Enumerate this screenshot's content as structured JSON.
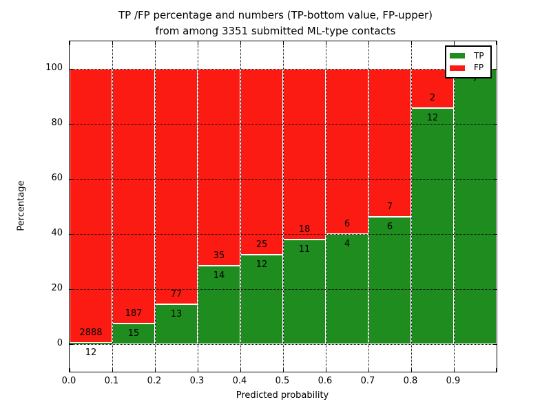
{
  "figure": {
    "title_line1": "TP /FP percentage and numbers (TP-bottom value, FP-upper)",
    "title_line2": "from among 3351 submitted ML-type contacts"
  },
  "chart_data": {
    "type": "bar",
    "stacked": true,
    "normalized_to_percent": true,
    "title": "TP /FP percentage and numbers (TP-bottom value, FP-upper) from among 3351 submitted ML-type contacts",
    "total_contacts": 3351,
    "xlabel": "Predicted probability",
    "ylabel": "Percentage",
    "xlim": [
      0.0,
      1.0
    ],
    "ylim": [
      -10,
      110
    ],
    "bin_width": 0.1,
    "categories": [
      "0.0-0.1",
      "0.1-0.2",
      "0.2-0.3",
      "0.3-0.4",
      "0.4-0.5",
      "0.5-0.6",
      "0.6-0.7",
      "0.7-0.8",
      "0.8-0.9",
      "0.9-1.0"
    ],
    "xtick_labels": [
      "0.0",
      "0.1",
      "0.2",
      "0.3",
      "0.4",
      "0.5",
      "0.6",
      "0.7",
      "0.8",
      "0.9"
    ],
    "ytick_values": [
      0,
      20,
      40,
      60,
      80,
      100
    ],
    "grid": {
      "style": "dotted",
      "color": "#000000"
    },
    "bar_edge_color": "#ffffff",
    "series": [
      {
        "name": "TP",
        "color": "#1e8c1e",
        "counts": [
          12,
          15,
          13,
          14,
          12,
          11,
          4,
          6,
          12,
          7
        ],
        "percent": [
          0.41,
          7.43,
          14.44,
          28.57,
          32.43,
          37.93,
          40.0,
          46.15,
          85.71,
          100.0
        ]
      },
      {
        "name": "FP",
        "color": "#fc1b12",
        "counts": [
          2888,
          187,
          77,
          35,
          25,
          18,
          6,
          7,
          2,
          0
        ],
        "percent": [
          99.59,
          92.57,
          85.56,
          71.43,
          67.57,
          62.07,
          60.0,
          53.85,
          14.29,
          0.0
        ]
      }
    ],
    "legend": {
      "position": "upper right",
      "entries": [
        "TP",
        "FP"
      ]
    },
    "annotation_scheme": "TP count printed at bottom of boundary, FP count printed above boundary"
  }
}
